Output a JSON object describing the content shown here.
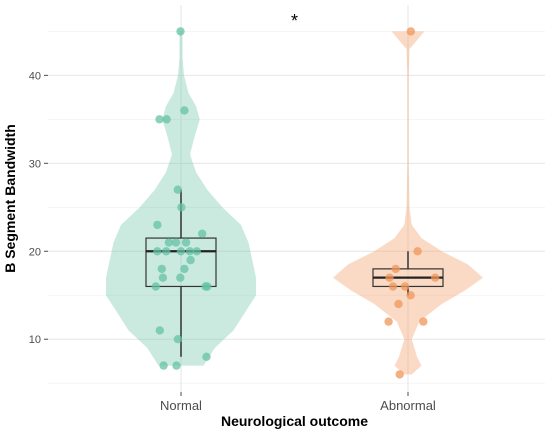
{
  "chart_data": {
    "type": "violin-box-jitter",
    "xlabel": "Neurological outcome",
    "ylabel": "B Segment Bandwidth",
    "annotation": "*",
    "ylim": [
      4,
      48
    ],
    "yticks": [
      10,
      20,
      30,
      40
    ],
    "categories": [
      "Normal",
      "Abnormal"
    ],
    "colors": {
      "Normal": "#66c2a5",
      "Abnormal": "#f0965a"
    },
    "box": {
      "Normal": {
        "min": 8,
        "q1": 16,
        "median": 20,
        "q3": 21.5,
        "max": 27
      },
      "Abnormal": {
        "min": 15,
        "q1": 16,
        "median": 17,
        "q3": 18,
        "max": 20
      }
    },
    "violin_density": {
      "Normal": [
        [
          7,
          0.3
        ],
        [
          9,
          0.45
        ],
        [
          11,
          0.7
        ],
        [
          13,
          0.85
        ],
        [
          15,
          1.0
        ],
        [
          17,
          1.0
        ],
        [
          19,
          0.95
        ],
        [
          21,
          0.9
        ],
        [
          23,
          0.8
        ],
        [
          25,
          0.55
        ],
        [
          27,
          0.35
        ],
        [
          29,
          0.2
        ],
        [
          31,
          0.12
        ],
        [
          33,
          0.18
        ],
        [
          35,
          0.25
        ],
        [
          36.5,
          0.2
        ],
        [
          38,
          0.1
        ],
        [
          40,
          0.04
        ],
        [
          42,
          0.02
        ],
        [
          45,
          0.02
        ]
      ],
      "Abnormal": [
        [
          6,
          0.05
        ],
        [
          7,
          0.18
        ],
        [
          8,
          0.12
        ],
        [
          10,
          0.05
        ],
        [
          12,
          0.15
        ],
        [
          14,
          0.45
        ],
        [
          15.5,
          0.75
        ],
        [
          17,
          1.0
        ],
        [
          18.5,
          0.8
        ],
        [
          20,
          0.45
        ],
        [
          21.5,
          0.18
        ],
        [
          23,
          0.05
        ],
        [
          25,
          0.02
        ],
        [
          30,
          0.01
        ],
        [
          40,
          0.01
        ],
        [
          43,
          0.02
        ],
        [
          44,
          0.12
        ],
        [
          45,
          0.22
        ]
      ]
    },
    "points": {
      "Normal": [
        45,
        36,
        35,
        35,
        27,
        25,
        23,
        22,
        21,
        21,
        21,
        20,
        20,
        20,
        20,
        20,
        19,
        18,
        18,
        17,
        17,
        16,
        16,
        16,
        11,
        10,
        8,
        7,
        7
      ],
      "Abnormal": [
        45,
        20,
        18,
        17,
        17,
        16,
        16,
        15,
        14,
        12,
        12,
        6
      ]
    },
    "grid": true
  }
}
